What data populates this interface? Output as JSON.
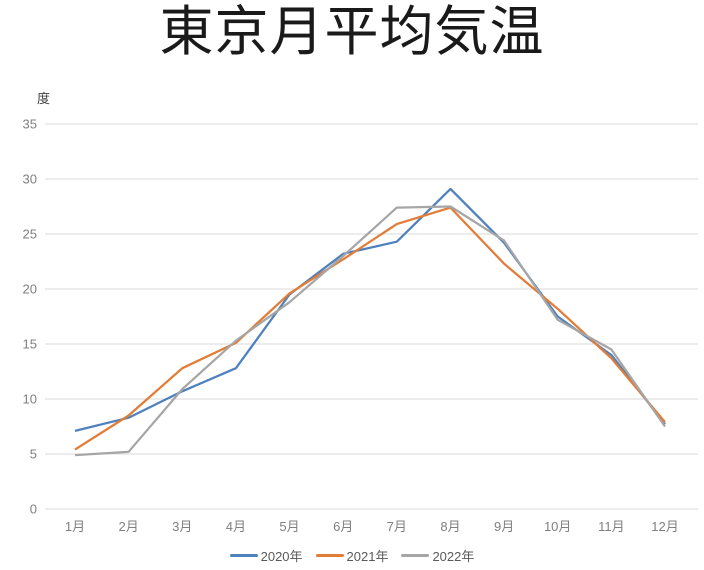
{
  "chart_data": {
    "type": "line",
    "title": "東京月平均気温",
    "unit_label": "度",
    "categories": [
      "1月",
      "2月",
      "3月",
      "4月",
      "5月",
      "6月",
      "7月",
      "8月",
      "9月",
      "10月",
      "11月",
      "12月"
    ],
    "series": [
      {
        "name": "2020年",
        "color": "#4e81bd",
        "values": [
          7.1,
          8.3,
          10.7,
          12.8,
          19.5,
          23.2,
          24.3,
          29.1,
          24.2,
          17.5,
          14.0,
          7.7
        ]
      },
      {
        "name": "2021年",
        "color": "#e27c36",
        "values": [
          5.4,
          8.5,
          12.8,
          15.1,
          19.6,
          22.7,
          25.9,
          27.4,
          22.3,
          18.2,
          13.7,
          7.9
        ]
      },
      {
        "name": "2022年",
        "color": "#a6a6a6",
        "values": [
          4.9,
          5.2,
          10.9,
          15.3,
          18.8,
          23.0,
          27.4,
          27.5,
          24.4,
          17.2,
          14.5,
          7.5
        ]
      }
    ],
    "ylim": [
      0,
      35
    ],
    "yticks": [
      0,
      5,
      10,
      15,
      20,
      25,
      30,
      35
    ],
    "xlabel": "",
    "ylabel": "度",
    "grid": true,
    "legend_position": "bottom",
    "colors": {
      "gridline": "#d9d9d9",
      "axis_text": "#7f7f7f",
      "legend_text": "#595959",
      "title_text": "#1a1a1a",
      "background": "#ffffff"
    }
  }
}
